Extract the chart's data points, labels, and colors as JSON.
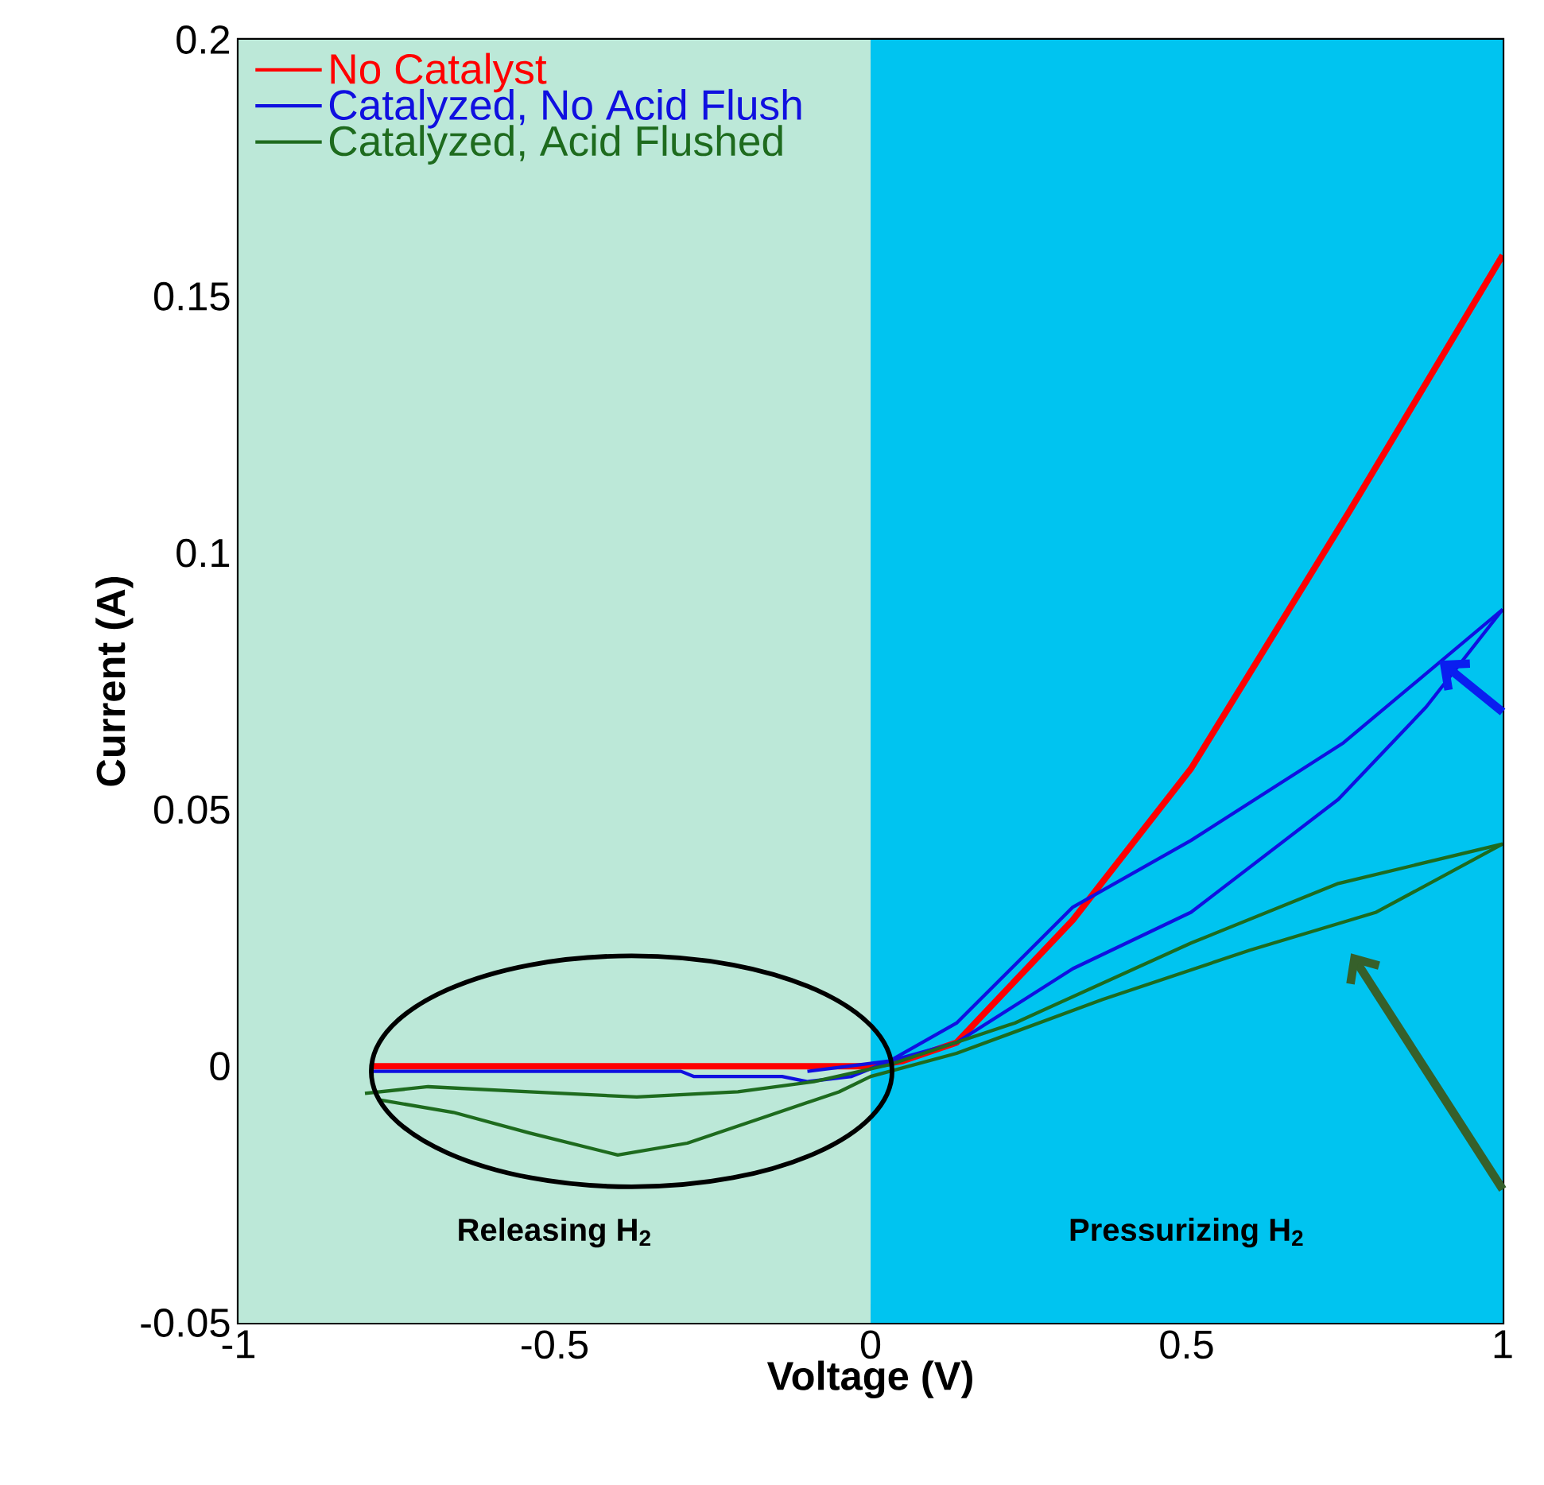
{
  "chart_data": {
    "type": "line",
    "xlabel": "Voltage (V)",
    "ylabel": "Current (A)",
    "xlim": [
      -1,
      1
    ],
    "ylim": [
      -0.05,
      0.2
    ],
    "xticks": [
      -1,
      -0.5,
      0,
      0.5,
      1
    ],
    "yticks": [
      -0.05,
      0,
      0.05,
      0.1,
      0.15,
      0.2
    ],
    "legend": "top left",
    "marker": "none",
    "line_style": "solid",
    "bands": [
      {
        "axis": "x",
        "from": -1,
        "to": 0,
        "label": "Releasing H$_{2}$",
        "color": "#bce8d8"
      },
      {
        "axis": "x",
        "from": 0,
        "to": 1,
        "label": "Pressurizing H$_{2}$",
        "color": "#00c4f0"
      }
    ],
    "series": [
      {
        "name": "No Catalyst",
        "color": "#ff0000",
        "x": [
          -0.79,
          0,
          0.05,
          0.136,
          0.32,
          0.507,
          0.757,
          1.0
        ],
        "values": [
          0,
          0,
          0.001,
          0.0046,
          0.0285,
          0.058,
          0.108,
          0.158
        ]
      },
      {
        "name": "Catalyzed, No Acid Flush",
        "color": "#1010e0",
        "x": [
          -0.79,
          -0.3,
          -0.28,
          -0.14,
          -0.1,
          -0.03,
          0.03,
          0.136,
          0.32,
          0.507,
          0.74,
          0.879,
          1.0
        ],
        "values": [
          -0.001,
          -0.001,
          -0.002,
          -0.002,
          -0.003,
          -0.002,
          0.001,
          0.0046,
          0.019,
          0.03,
          0.052,
          0.07,
          0.089
        ]
      },
      {
        "color": "#1010e0",
        "x": [
          -0.1,
          0.03,
          0.136,
          0.32,
          0.507,
          0.748,
          1.0
        ],
        "values": [
          -0.001,
          0.001,
          0.0084,
          0.031,
          0.044,
          0.063,
          0.089
        ]
      },
      {
        "name": "Catalyzed, Acid Flushed",
        "color": "#1e6b1e",
        "x": [
          -0.8,
          -0.7,
          -0.54,
          -0.37,
          -0.21,
          -0.09,
          0.03,
          0.228,
          0.507,
          0.74,
          1.0
        ],
        "values": [
          -0.0053,
          -0.004,
          -0.005,
          -0.006,
          -0.005,
          -0.003,
          0.0003,
          0.0084,
          0.024,
          0.0356,
          0.0433
        ]
      },
      {
        "color": "#1e6b1e",
        "x": [
          -0.78,
          -0.66,
          -0.54,
          -0.4,
          -0.29,
          -0.17,
          -0.05,
          0,
          0.136,
          0.367,
          0.6,
          0.8,
          1.0
        ],
        "values": [
          -0.0065,
          -0.009,
          -0.013,
          -0.0173,
          -0.015,
          -0.01,
          -0.005,
          -0.002,
          0.0025,
          0.013,
          0.0226,
          0.03,
          0.0433
        ]
      }
    ]
  }
}
